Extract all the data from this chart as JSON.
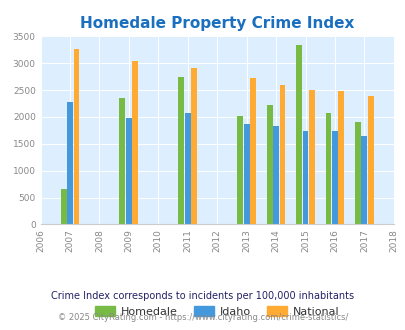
{
  "title": "Homedale Property Crime Index",
  "title_color": "#1a6fbe",
  "years": [
    2007,
    2009,
    2011,
    2013,
    2014,
    2015,
    2016,
    2017
  ],
  "homedale": [
    650,
    2350,
    2750,
    2010,
    2230,
    3330,
    2080,
    1910
  ],
  "idaho": [
    2270,
    1980,
    2070,
    1860,
    1840,
    1730,
    1730,
    1640
  ],
  "national": [
    3270,
    3040,
    2910,
    2730,
    2600,
    2500,
    2480,
    2380
  ],
  "color_homedale": "#77bb44",
  "color_idaho": "#4499dd",
  "color_national": "#ffaa33",
  "ylim": [
    0,
    3500
  ],
  "yticks": [
    0,
    500,
    1000,
    1500,
    2000,
    2500,
    3000,
    3500
  ],
  "xticks": [
    2006,
    2007,
    2008,
    2009,
    2010,
    2011,
    2012,
    2013,
    2014,
    2015,
    2016,
    2017,
    2018
  ],
  "bg_color": "#ddeeff",
  "legend_labels": [
    "Homedale",
    "Idaho",
    "National"
  ],
  "footnote1": "Crime Index corresponds to incidents per 100,000 inhabitants",
  "footnote2": "© 2025 CityRating.com - https://www.cityrating.com/crime-statistics/",
  "footnote1_color": "#222266",
  "footnote2_color": "#888888",
  "bar_width": 0.2,
  "bar_gap": 0.22
}
